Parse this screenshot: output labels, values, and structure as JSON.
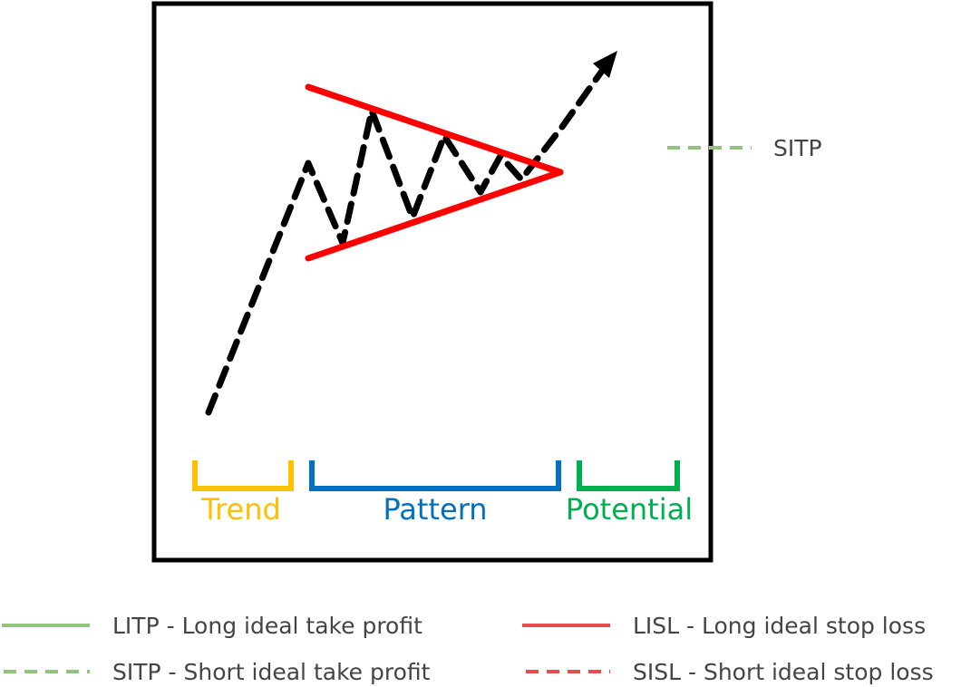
{
  "phases": {
    "trend": "Trend",
    "pattern": "Pattern",
    "potential": "Potential"
  },
  "marker_label": "SITP",
  "legend": {
    "litp": "LITP - Long ideal take profit",
    "sitp": "SITP - Short ideal take profit",
    "lisl": "LISL - Long ideal stop loss",
    "sisl": "SISL - Short ideal stop loss"
  },
  "colors": {
    "frame": "#000000",
    "price_path": "#000000",
    "pattern_lines": "#fe0000",
    "trend": "#ffc000",
    "pattern": "#0070c0",
    "potential": "#00b050",
    "take_profit": "#92c47d",
    "stop_loss": "#e84c4c",
    "text": "#444444"
  }
}
